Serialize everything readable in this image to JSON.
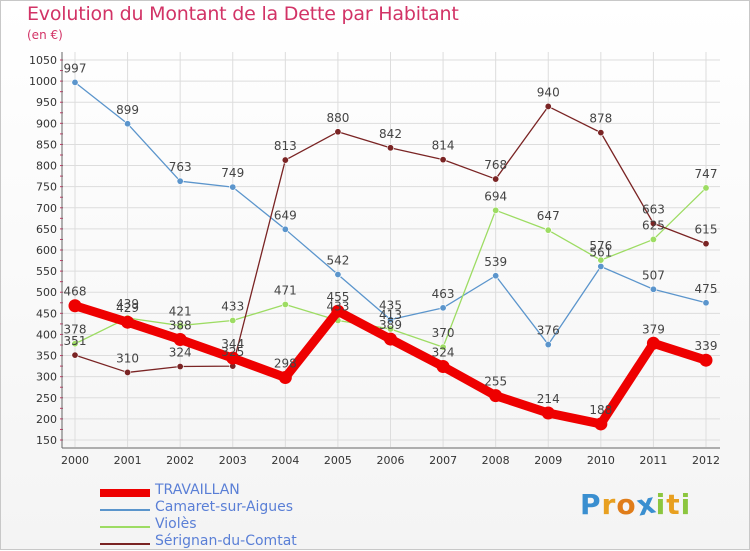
{
  "title": "Evolution du Montant de la Dette par Habitant",
  "unit": "(en €)",
  "logo": [
    "P",
    "r",
    "o",
    "x",
    "i",
    "t",
    "i"
  ],
  "colors": {
    "TRAVAILLAN": "#ee0000",
    "Camaret-sur-Aigues": "#5b95cc",
    "Violès": "#9ddc63",
    "Sérignan-du-Comtat": "#7a2424",
    "grid": "#dddddd",
    "title": "#d23366"
  },
  "chart_data": {
    "type": "line",
    "title": "Evolution du Montant de la Dette par Habitant",
    "ylabel": "(en €)",
    "xlabel": "",
    "x": [
      "2000",
      "2001",
      "2002",
      "2003",
      "2004",
      "2005",
      "2006",
      "2007",
      "2008",
      "2009",
      "2010",
      "2011",
      "2012"
    ],
    "ylim": [
      150,
      1050
    ],
    "yticks": [
      150,
      200,
      250,
      300,
      350,
      400,
      450,
      500,
      550,
      600,
      650,
      700,
      750,
      800,
      850,
      900,
      950,
      1000,
      1050
    ],
    "grid": true,
    "legend_placement": "bottom-left",
    "series": [
      {
        "name": "TRAVAILLAN",
        "values": [
          468,
          429,
          388,
          344,
          298,
          455,
          389,
          324,
          255,
          214,
          188,
          379,
          339
        ]
      },
      {
        "name": "Camaret-sur-Aigues",
        "values": [
          997,
          899,
          763,
          749,
          649,
          542,
          435,
          463,
          539,
          376,
          561,
          507,
          475
        ]
      },
      {
        "name": "Violès",
        "values": [
          378,
          439,
          421,
          433,
          471,
          433,
          413,
          370,
          694,
          647,
          576,
          625,
          747
        ]
      },
      {
        "name": "Sérignan-du-Comtat",
        "values": [
          351,
          310,
          324,
          325,
          813,
          880,
          842,
          814,
          768,
          940,
          878,
          663,
          615
        ]
      }
    ]
  }
}
